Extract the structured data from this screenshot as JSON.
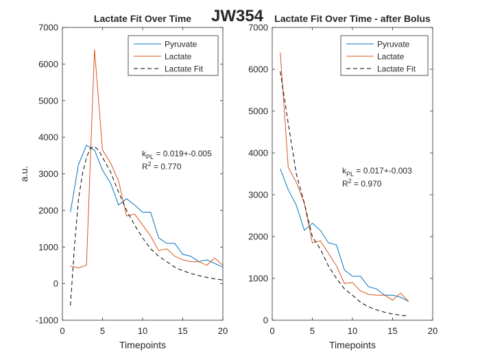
{
  "figure_title": "JW354",
  "chart_data": [
    {
      "type": "line",
      "title": "Lactate Fit Over Time",
      "xlabel": "Timepoints",
      "ylabel": "a.u.",
      "xlim": [
        0,
        20
      ],
      "ylim": [
        -1000,
        7000
      ],
      "xticks": [
        0,
        5,
        10,
        15,
        20
      ],
      "yticks": [
        -1000,
        0,
        1000,
        2000,
        3000,
        4000,
        5000,
        6000,
        7000
      ],
      "grid": false,
      "legend_position": "top-right",
      "annotation": {
        "k_prefix": "k",
        "k_sub": "PL",
        "k_value": " = 0.019+-0.005",
        "r2_prefix": "R",
        "r2_sup": "2",
        "r2_value": " = 0.770"
      },
      "series": [
        {
          "name": "Pyruvate",
          "color": "#0072BD",
          "style": "solid",
          "x": [
            1,
            2,
            3,
            4,
            5,
            6,
            7,
            8,
            9,
            10,
            11,
            12,
            13,
            14,
            15,
            16,
            17,
            18,
            19,
            20
          ],
          "values": [
            1950,
            3250,
            3780,
            3650,
            3100,
            2750,
            2150,
            2320,
            2150,
            1950,
            1950,
            1250,
            1100,
            1100,
            800,
            750,
            600,
            650,
            550,
            450
          ]
        },
        {
          "name": "Lactate",
          "color": "#D95319",
          "style": "solid",
          "x": [
            1,
            2,
            3,
            4,
            5,
            6,
            7,
            8,
            9,
            10,
            11,
            12,
            13,
            14,
            15,
            16,
            17,
            18,
            19,
            20
          ],
          "values": [
            480,
            430,
            500,
            6400,
            3650,
            3300,
            2800,
            1850,
            1900,
            1600,
            1300,
            900,
            950,
            750,
            650,
            600,
            600,
            500,
            700,
            500
          ]
        },
        {
          "name": "Lactate Fit",
          "color": "#000000",
          "style": "dashed",
          "x": [
            1,
            1.5,
            2,
            2.5,
            3,
            3.5,
            4,
            4.5,
            5,
            6,
            7,
            8,
            9,
            10,
            11,
            12,
            13,
            14,
            15,
            16,
            17,
            18,
            19,
            20
          ],
          "values": [
            -600,
            1000,
            2300,
            3000,
            3450,
            3700,
            3750,
            3650,
            3450,
            3050,
            2500,
            2000,
            1600,
            1250,
            950,
            750,
            600,
            450,
            350,
            280,
            220,
            170,
            130,
            100
          ]
        }
      ]
    },
    {
      "type": "line",
      "title": "Lactate Fit Over Time - after Bolus",
      "xlabel": "Timepoints",
      "ylabel": "",
      "xlim": [
        0,
        20
      ],
      "ylim": [
        0,
        7000
      ],
      "xticks": [
        0,
        5,
        10,
        15,
        20
      ],
      "yticks": [
        0,
        1000,
        2000,
        3000,
        4000,
        5000,
        6000,
        7000
      ],
      "grid": false,
      "legend_position": "top-right",
      "annotation": {
        "k_prefix": "k",
        "k_sub": "PL",
        "k_value": " = 0.017+-0.003",
        "r2_prefix": "R",
        "r2_sup": "2",
        "r2_value": " = 0.970"
      },
      "series": [
        {
          "name": "Pyruvate",
          "color": "#0072BD",
          "style": "solid",
          "x": [
            1,
            2,
            3,
            4,
            5,
            6,
            7,
            8,
            9,
            10,
            11,
            12,
            13,
            14,
            15,
            16,
            17
          ],
          "values": [
            3620,
            3120,
            2750,
            2150,
            2320,
            2150,
            1850,
            1800,
            1200,
            1050,
            1050,
            800,
            750,
            600,
            600,
            550,
            450
          ]
        },
        {
          "name": "Lactate",
          "color": "#D95319",
          "style": "solid",
          "x": [
            1,
            2,
            3,
            4,
            5,
            6,
            7,
            8,
            9,
            10,
            11,
            12,
            13,
            14,
            15,
            16,
            17
          ],
          "values": [
            6400,
            3650,
            3300,
            2800,
            1850,
            1900,
            1600,
            1300,
            880,
            900,
            700,
            620,
            600,
            600,
            480,
            650,
            450
          ]
        },
        {
          "name": "Lactate Fit",
          "color": "#000000",
          "style": "dashed",
          "x": [
            1,
            2,
            3,
            4,
            5,
            6,
            7,
            8,
            9,
            10,
            11,
            12,
            13,
            14,
            15,
            16,
            17
          ],
          "values": [
            5950,
            4700,
            3500,
            2800,
            2000,
            1700,
            1300,
            1000,
            750,
            600,
            430,
            320,
            250,
            190,
            150,
            120,
            100
          ]
        }
      ]
    }
  ]
}
